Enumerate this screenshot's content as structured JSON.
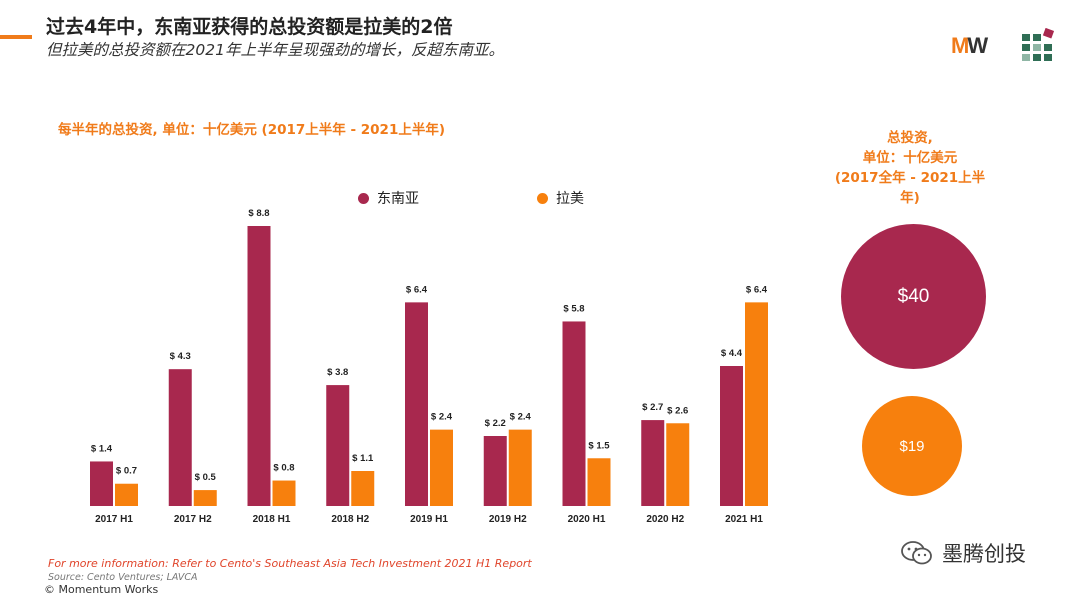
{
  "header": {
    "title": "过去4年中，东南亚获得的总投资额是拉美的2倍",
    "subtitle": "但拉美的总投资额在2021年上半年呈现强劲的增长，反超东南亚。"
  },
  "logo": {
    "m": "M",
    "w": "W"
  },
  "colors": {
    "sea": "#a8284e",
    "latam": "#f7800d",
    "accent": "#f07b1a",
    "footer_red": "#e0452b"
  },
  "chart_data": {
    "type": "bar",
    "title": "每半年的总投资, 单位：十亿美元 (2017上半年 - 2021上半年)",
    "categories": [
      "2017 H1",
      "2017 H2",
      "2018 H1",
      "2018 H2",
      "2019 H1",
      "2019 H2",
      "2020 H1",
      "2020 H2",
      "2021 H1"
    ],
    "series": [
      {
        "name": "东南亚",
        "values": [
          1.4,
          4.3,
          8.8,
          3.8,
          6.4,
          2.2,
          5.8,
          2.7,
          4.4
        ],
        "labels": [
          "$ 1.4",
          "$ 4.3",
          "$ 8.8",
          "$ 3.8",
          "$ 6.4",
          "$ 2.2",
          "$ 5.8",
          "$ 2.7",
          "$ 4.4"
        ]
      },
      {
        "name": "拉美",
        "values": [
          0.7,
          0.5,
          0.8,
          1.1,
          2.4,
          2.4,
          1.5,
          2.6,
          6.4
        ],
        "labels": [
          "$ 0.7",
          "$ 0.5",
          "$ 0.8",
          "$ 1.1",
          "$ 2.4",
          "$ 2.4",
          "$ 1.5",
          "$ 2.6",
          "$ 6.4"
        ]
      }
    ],
    "ylim": [
      0,
      9
    ],
    "xlabel": "",
    "ylabel": "",
    "legend": "top"
  },
  "bubble_chart": {
    "title_lines": [
      "总投资,",
      "单位：十亿美元",
      "(2017全年 - 2021上半年)"
    ],
    "items": [
      {
        "name": "东南亚",
        "value": 40,
        "label": "$40"
      },
      {
        "name": "拉美",
        "value": 19,
        "label": "$19"
      }
    ]
  },
  "footer": {
    "info": "For more information: Refer to Cento's Southeast Asia Tech Investment 2021 H1 Report",
    "source": "Source: Cento Ventures; LAVCA",
    "copyright": "© Momentum Works"
  },
  "wechat": {
    "name": "墨腾创投",
    "icon": "wechat-icon"
  }
}
